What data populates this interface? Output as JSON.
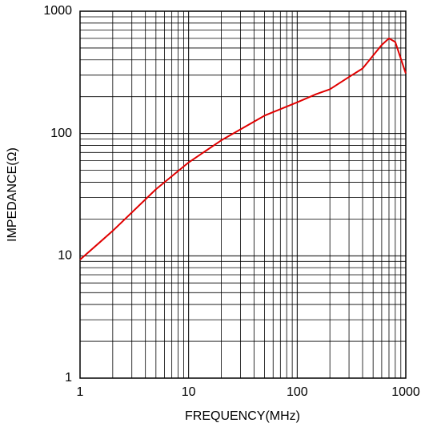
{
  "chart_data": {
    "type": "line",
    "x_label": "FREQUENCY(MHz)",
    "y_label": "IMPEDANCE(Ω)",
    "x_log": true,
    "y_log": true,
    "grid": true,
    "minor_grid": true,
    "xlim": [
      1,
      1000
    ],
    "ylim": [
      1,
      1000
    ],
    "xticks": [
      1,
      10,
      100,
      1000
    ],
    "yticks": [
      1,
      10,
      100,
      1000
    ],
    "series": [
      {
        "color": "#e00000",
        "x": [
          1,
          2,
          5,
          10,
          20,
          50,
          100,
          150,
          200,
          300,
          400,
          600,
          700,
          800,
          1000
        ],
        "values": [
          9.3,
          16,
          35,
          58,
          88,
          140,
          180,
          210,
          230,
          290,
          340,
          530,
          600,
          560,
          310
        ]
      }
    ]
  }
}
